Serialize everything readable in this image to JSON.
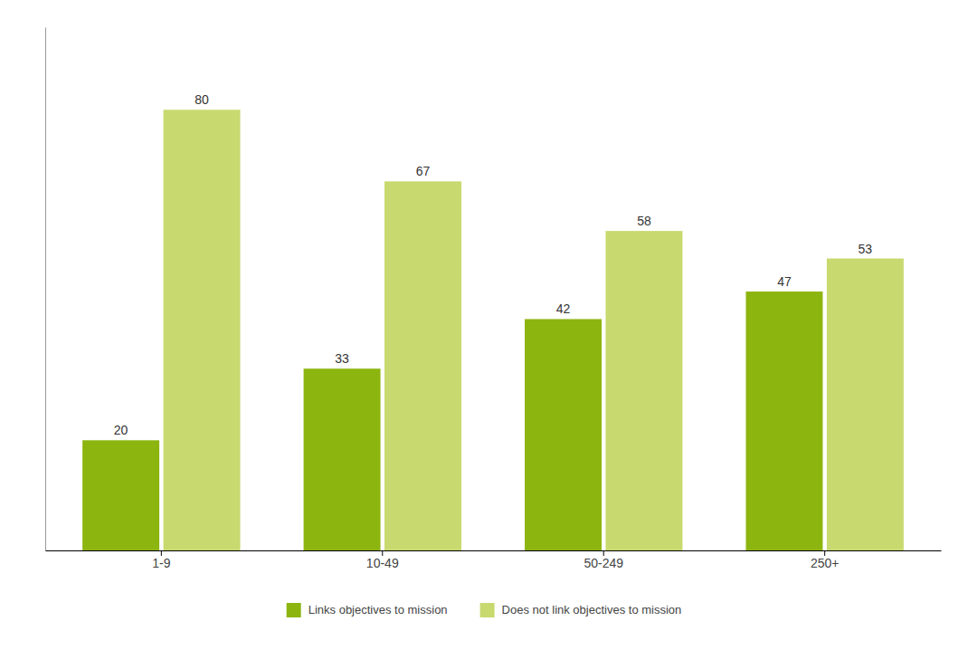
{
  "chart_data": {
    "type": "bar",
    "categories": [
      "1-9",
      "10-49",
      "50-249",
      "250+"
    ],
    "series": [
      {
        "name": "Links objectives to mission",
        "color": "#8db510",
        "values": [
          20,
          33,
          42,
          47
        ]
      },
      {
        "name": "Does not link objectives to mission",
        "color": "#c8d96f",
        "values": [
          80,
          67,
          58,
          53
        ]
      }
    ],
    "ylim": [
      0,
      95
    ],
    "data_labels": true,
    "legend": "bottom",
    "grid": false,
    "tick_labels": "x"
  }
}
